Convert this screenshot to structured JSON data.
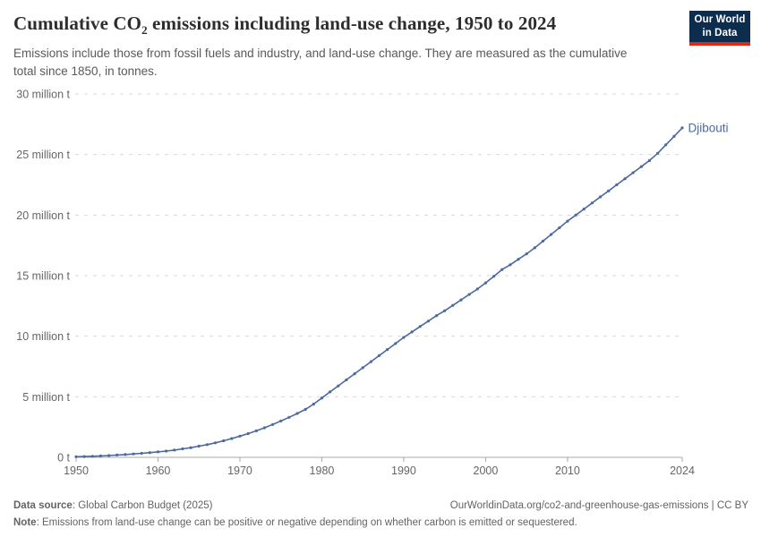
{
  "colors": {
    "line": "#4C6A9C",
    "grid": "#d9d9d9",
    "axis": "#a8a8a8",
    "tick_label": "#666666",
    "logo_navy": "#0d2d4e",
    "logo_red": "#dd2b17"
  },
  "header": {
    "title_pre": "Cumulative CO",
    "title_sub": "2",
    "title_post": " emissions including land-use change, 1950 to 2024",
    "subtitle": "Emissions include those from fossil fuels and industry, and land-use change. They are measured as the cumulative total since 1850, in tonnes.",
    "logo": {
      "line1": "Our World",
      "line2": "in Data"
    }
  },
  "chart_data": {
    "type": "line",
    "title": "Cumulative CO2 emissions including land-use change, 1950 to 2024",
    "entity_label": "Djibouti",
    "unit": "million t",
    "xlim": [
      1950,
      2024
    ],
    "ylim": [
      0,
      30
    ],
    "grid": "horizontal-dashed",
    "legend_position": "end-of-line-label",
    "x_ticks": [
      1950,
      1960,
      1970,
      1980,
      1990,
      2000,
      2010,
      2024
    ],
    "y_ticks": [
      0,
      5,
      10,
      15,
      20,
      25,
      30
    ],
    "y_tick_labels": [
      "0 t",
      "5 million t",
      "10 million t",
      "15 million t",
      "20 million t",
      "25 million t",
      "30 million t"
    ],
    "x": [
      1950,
      1951,
      1952,
      1953,
      1954,
      1955,
      1956,
      1957,
      1958,
      1959,
      1960,
      1961,
      1962,
      1963,
      1964,
      1965,
      1966,
      1967,
      1968,
      1969,
      1970,
      1971,
      1972,
      1973,
      1974,
      1975,
      1976,
      1977,
      1978,
      1979,
      1980,
      1981,
      1982,
      1983,
      1984,
      1985,
      1986,
      1987,
      1988,
      1989,
      1990,
      1991,
      1992,
      1993,
      1994,
      1995,
      1996,
      1997,
      1998,
      1999,
      2000,
      2001,
      2002,
      2003,
      2004,
      2005,
      2006,
      2007,
      2008,
      2009,
      2010,
      2011,
      2012,
      2013,
      2014,
      2015,
      2016,
      2017,
      2018,
      2019,
      2020,
      2021,
      2022,
      2023,
      2024
    ],
    "series": [
      {
        "name": "Djibouti",
        "color": "#4C6A9C",
        "values": [
          0.05,
          0.07,
          0.09,
          0.12,
          0.15,
          0.19,
          0.23,
          0.28,
          0.33,
          0.39,
          0.45,
          0.52,
          0.6,
          0.7,
          0.8,
          0.92,
          1.05,
          1.2,
          1.37,
          1.55,
          1.75,
          1.96,
          2.19,
          2.44,
          2.71,
          3.0,
          3.3,
          3.62,
          3.96,
          4.4,
          4.9,
          5.4,
          5.9,
          6.4,
          6.9,
          7.4,
          7.9,
          8.4,
          8.9,
          9.4,
          9.9,
          10.35,
          10.8,
          11.25,
          11.7,
          12.1,
          12.55,
          13.0,
          13.45,
          13.9,
          14.4,
          14.95,
          15.5,
          15.9,
          16.35,
          16.8,
          17.3,
          17.85,
          18.4,
          18.95,
          19.5,
          20.0,
          20.5,
          21.0,
          21.5,
          22.0,
          22.5,
          23.0,
          23.5,
          24.0,
          24.5,
          25.1,
          25.8,
          26.5,
          27.2
        ]
      }
    ]
  },
  "footer": {
    "source_label": "Data source",
    "source_text": ": Global Carbon Budget (2025)",
    "url_text": "OurWorldinData.org/co2-and-greenhouse-gas-emissions | CC BY",
    "note_label": "Note",
    "note_text": ": Emissions from land-use change can be positive or negative depending on whether carbon is emitted or sequestered."
  }
}
